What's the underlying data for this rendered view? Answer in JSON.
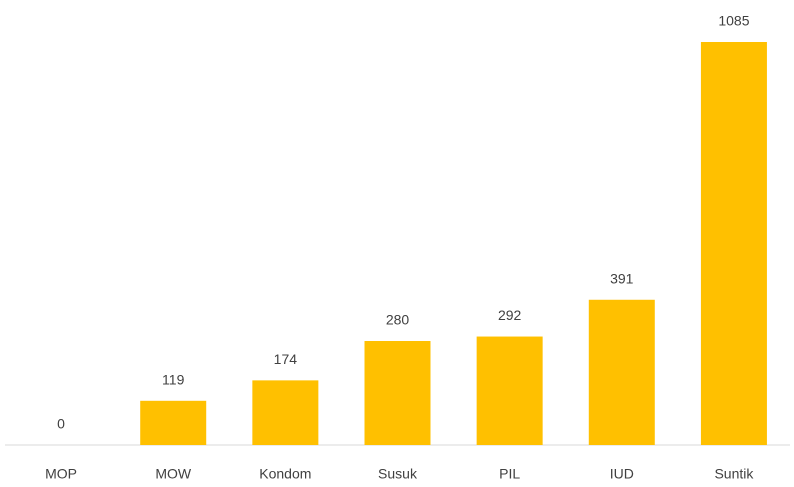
{
  "chart_data": {
    "type": "bar",
    "categories": [
      "MOP",
      "MOW",
      "Kondom",
      "Susuk",
      "PIL",
      "IUD",
      "Suntik"
    ],
    "values": [
      0,
      119,
      174,
      280,
      292,
      391,
      1085
    ],
    "color": "#ffc000"
  }
}
